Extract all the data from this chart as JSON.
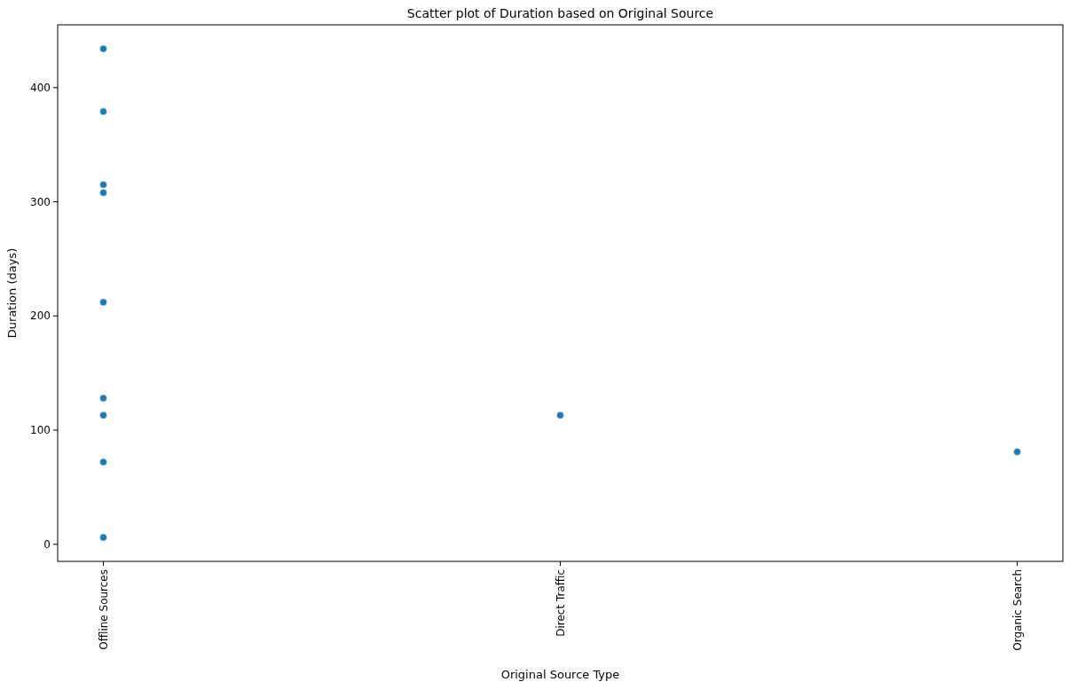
{
  "chart_data": {
    "type": "scatter",
    "title": "Scatter plot of Duration based on Original Source",
    "xlabel": "Original Source Type",
    "ylabel": "Duration (days)",
    "categories": [
      "Offline Sources",
      "Direct Traffic",
      "Organic Search"
    ],
    "series": [
      {
        "color": "#1f77b4",
        "x": [
          "Offline Sources",
          "Offline Sources",
          "Offline Sources",
          "Offline Sources",
          "Offline Sources",
          "Offline Sources",
          "Offline Sources",
          "Offline Sources",
          "Offline Sources",
          "Direct Traffic",
          "Organic Search"
        ],
        "values": [
          434,
          379,
          315,
          308,
          212,
          128,
          113,
          72,
          6,
          113,
          81
        ]
      }
    ],
    "ylim": [
      -15,
      455
    ],
    "yticks": [
      0,
      100,
      200,
      300,
      400
    ],
    "marker": "circle",
    "grid": false
  }
}
